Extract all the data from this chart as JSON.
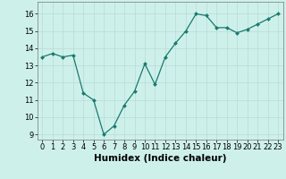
{
  "x": [
    0,
    1,
    2,
    3,
    4,
    5,
    6,
    7,
    8,
    9,
    10,
    11,
    12,
    13,
    14,
    15,
    16,
    17,
    18,
    19,
    20,
    21,
    22,
    23
  ],
  "y": [
    13.5,
    13.7,
    13.5,
    13.6,
    11.4,
    11.0,
    9.0,
    9.5,
    10.7,
    11.5,
    13.1,
    11.9,
    13.5,
    14.3,
    15.0,
    16.0,
    15.9,
    15.2,
    15.2,
    14.9,
    15.1,
    15.4,
    15.7,
    16.0
  ],
  "xlabel": "Humidex (Indice chaleur)",
  "ylim": [
    8.7,
    16.7
  ],
  "xlim": [
    -0.5,
    23.5
  ],
  "yticks": [
    9,
    10,
    11,
    12,
    13,
    14,
    15,
    16
  ],
  "xtick_labels": [
    "0",
    "1",
    "2",
    "3",
    "4",
    "5",
    "6",
    "7",
    "8",
    "9",
    "10",
    "11",
    "12",
    "13",
    "14",
    "15",
    "16",
    "17",
    "18",
    "19",
    "20",
    "21",
    "22",
    "23"
  ],
  "line_color": "#1a7a6e",
  "marker_color": "#1a7a6e",
  "bg_color": "#cef0eb",
  "grid_color": "#b8dbd7",
  "tick_fontsize": 6.0,
  "xlabel_fontsize": 7.5
}
